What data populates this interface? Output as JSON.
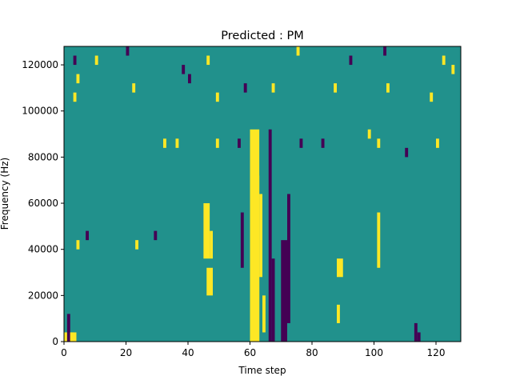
{
  "chart_data": {
    "type": "heatmap",
    "title": "Predicted : PM",
    "xlabel": "Time step",
    "ylabel": "Frequency (Hz)",
    "xlim": [
      0,
      128
    ],
    "ylim": [
      0,
      128000
    ],
    "x_ticks": [
      0,
      20,
      40,
      60,
      80,
      100,
      120
    ],
    "x_tick_labels": [
      "0",
      "20",
      "40",
      "60",
      "80",
      "100",
      "120"
    ],
    "y_ticks": [
      0,
      20000,
      40000,
      60000,
      80000,
      100000,
      120000
    ],
    "y_tick_labels": [
      "0",
      "20000",
      "40000",
      "60000",
      "80000",
      "100000",
      "120000"
    ],
    "grid": false,
    "colormap": "viridis",
    "value_levels": [
      -1,
      0,
      1
    ],
    "colors": {
      "low": "#440154",
      "mid": "#21918c",
      "high": "#fde725"
    },
    "background_value": 0,
    "cells_note_units": "each cell: [x_start, x_end, y_start_Hz, y_end_Hz, value]",
    "cells": [
      [
        0,
        4,
        0,
        4000,
        1
      ],
      [
        1,
        2,
        0,
        12000,
        -1
      ],
      [
        60,
        63,
        0,
        92000,
        1
      ],
      [
        61,
        63,
        0,
        72000,
        1
      ],
      [
        63,
        64,
        28000,
        64000,
        1
      ],
      [
        64,
        65,
        4000,
        20000,
        1
      ],
      [
        66,
        67,
        0,
        92000,
        -1
      ],
      [
        67,
        68,
        0,
        36000,
        -1
      ],
      [
        70,
        72,
        0,
        44000,
        -1
      ],
      [
        72,
        73,
        8000,
        64000,
        -1
      ],
      [
        57,
        58,
        32000,
        56000,
        -1
      ],
      [
        45,
        47,
        36000,
        60000,
        1
      ],
      [
        47,
        48,
        36000,
        48000,
        1
      ],
      [
        46,
        48,
        20000,
        32000,
        1
      ],
      [
        88,
        90,
        28000,
        36000,
        1
      ],
      [
        88,
        89,
        8000,
        16000,
        1
      ],
      [
        101,
        102,
        32000,
        56000,
        1
      ],
      [
        113,
        114,
        0,
        8000,
        -1
      ],
      [
        114,
        115,
        0,
        4000,
        -1
      ],
      [
        2,
        3,
        0,
        4000,
        1
      ],
      [
        4,
        5,
        40000,
        44000,
        1
      ],
      [
        23,
        24,
        40000,
        44000,
        1
      ],
      [
        29,
        30,
        44000,
        48000,
        -1
      ],
      [
        7,
        8,
        44000,
        48000,
        -1
      ],
      [
        32,
        33,
        84000,
        88000,
        1
      ],
      [
        36,
        37,
        84000,
        88000,
        1
      ],
      [
        49,
        50,
        84000,
        88000,
        1
      ],
      [
        56,
        57,
        84000,
        88000,
        -1
      ],
      [
        76,
        77,
        84000,
        88000,
        -1
      ],
      [
        83,
        84,
        84000,
        88000,
        -1
      ],
      [
        98,
        99,
        88000,
        92000,
        1
      ],
      [
        101,
        102,
        84000,
        88000,
        1
      ],
      [
        110,
        111,
        80000,
        84000,
        -1
      ],
      [
        120,
        121,
        84000,
        88000,
        1
      ],
      [
        3,
        4,
        104000,
        108000,
        1
      ],
      [
        4,
        5,
        112000,
        116000,
        1
      ],
      [
        22,
        23,
        108000,
        112000,
        1
      ],
      [
        40,
        41,
        112000,
        116000,
        -1
      ],
      [
        49,
        50,
        104000,
        108000,
        1
      ],
      [
        58,
        59,
        108000,
        112000,
        -1
      ],
      [
        67,
        68,
        108000,
        112000,
        1
      ],
      [
        87,
        88,
        108000,
        112000,
        1
      ],
      [
        104,
        105,
        108000,
        112000,
        1
      ],
      [
        118,
        119,
        104000,
        108000,
        1
      ],
      [
        3,
        4,
        120000,
        124000,
        -1
      ],
      [
        10,
        11,
        120000,
        124000,
        1
      ],
      [
        20,
        21,
        124000,
        128000,
        -1
      ],
      [
        38,
        39,
        116000,
        120000,
        -1
      ],
      [
        46,
        47,
        120000,
        124000,
        1
      ],
      [
        75,
        76,
        124000,
        128000,
        1
      ],
      [
        92,
        93,
        120000,
        124000,
        -1
      ],
      [
        103,
        104,
        124000,
        128000,
        -1
      ],
      [
        122,
        123,
        120000,
        124000,
        1
      ],
      [
        125,
        126,
        116000,
        120000,
        1
      ]
    ]
  }
}
